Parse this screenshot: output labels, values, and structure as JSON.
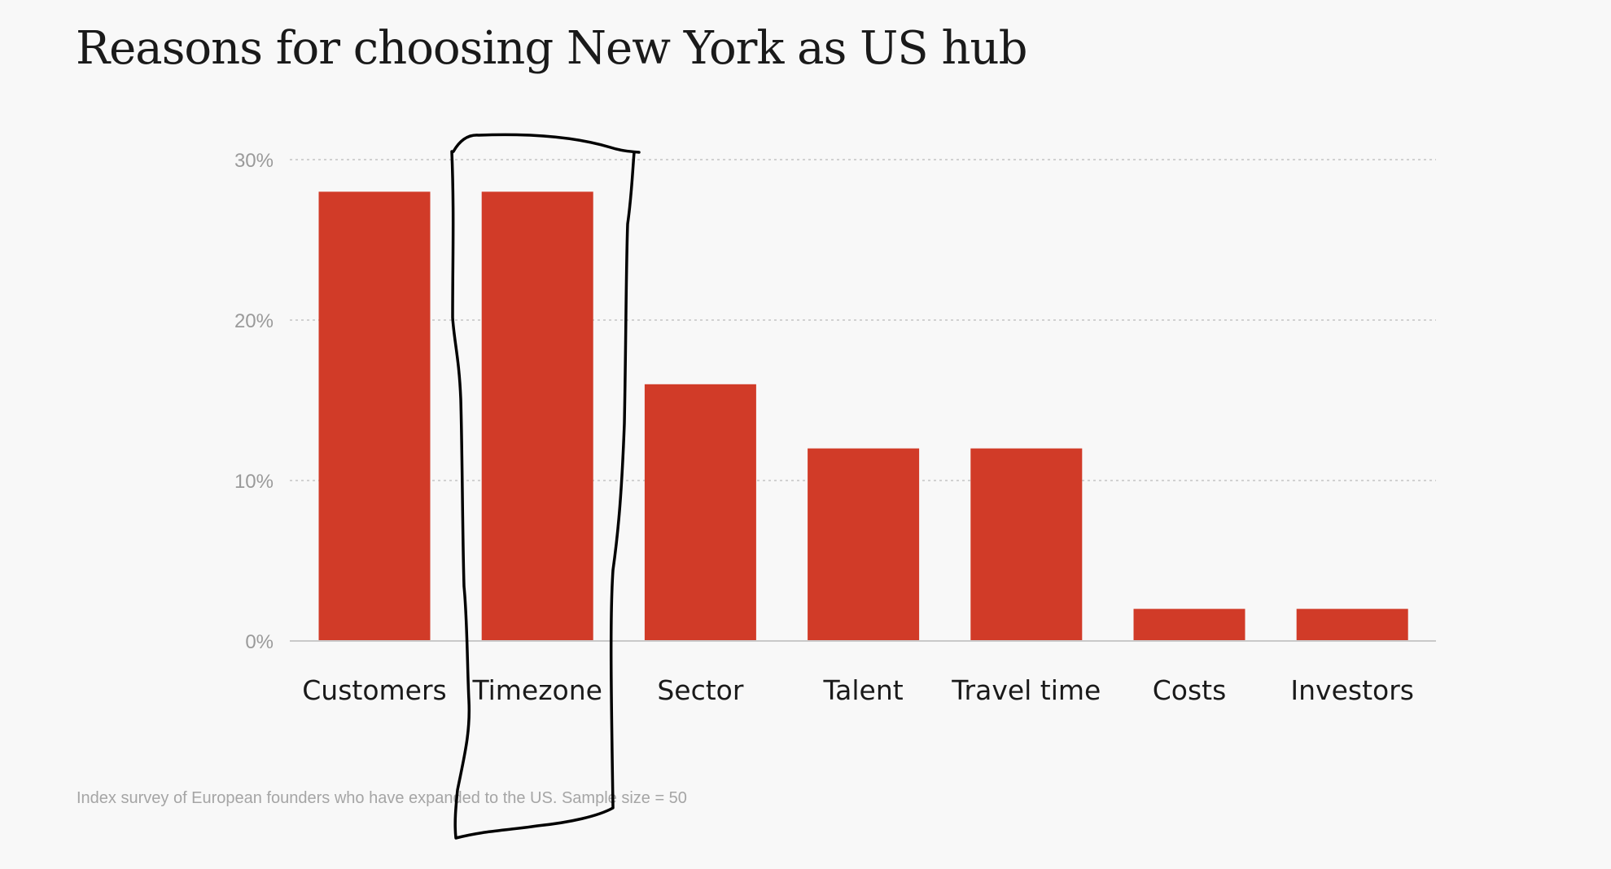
{
  "chart_data": {
    "type": "bar",
    "title": "Reasons for choosing New York as US hub",
    "categories": [
      "Customers",
      "Timezone",
      "Sector",
      "Talent",
      "Travel time",
      "Costs",
      "Investors"
    ],
    "values": [
      28,
      28,
      16,
      12,
      12,
      2,
      2
    ],
    "ylim": [
      0,
      30
    ],
    "yticks": [
      "0%",
      "10%",
      "20%",
      "30%"
    ],
    "ytick_values": [
      0,
      10,
      20,
      30
    ],
    "xlabel": "",
    "ylabel": "",
    "grid": true,
    "legend": "none",
    "bar_color": "#d13b28",
    "footnote": "Index survey of European founders who have expanded to the US. Sample size = 50",
    "annotation": {
      "type": "hand-drawn-outline",
      "target_category": "Timezone",
      "color": "#000000"
    }
  }
}
